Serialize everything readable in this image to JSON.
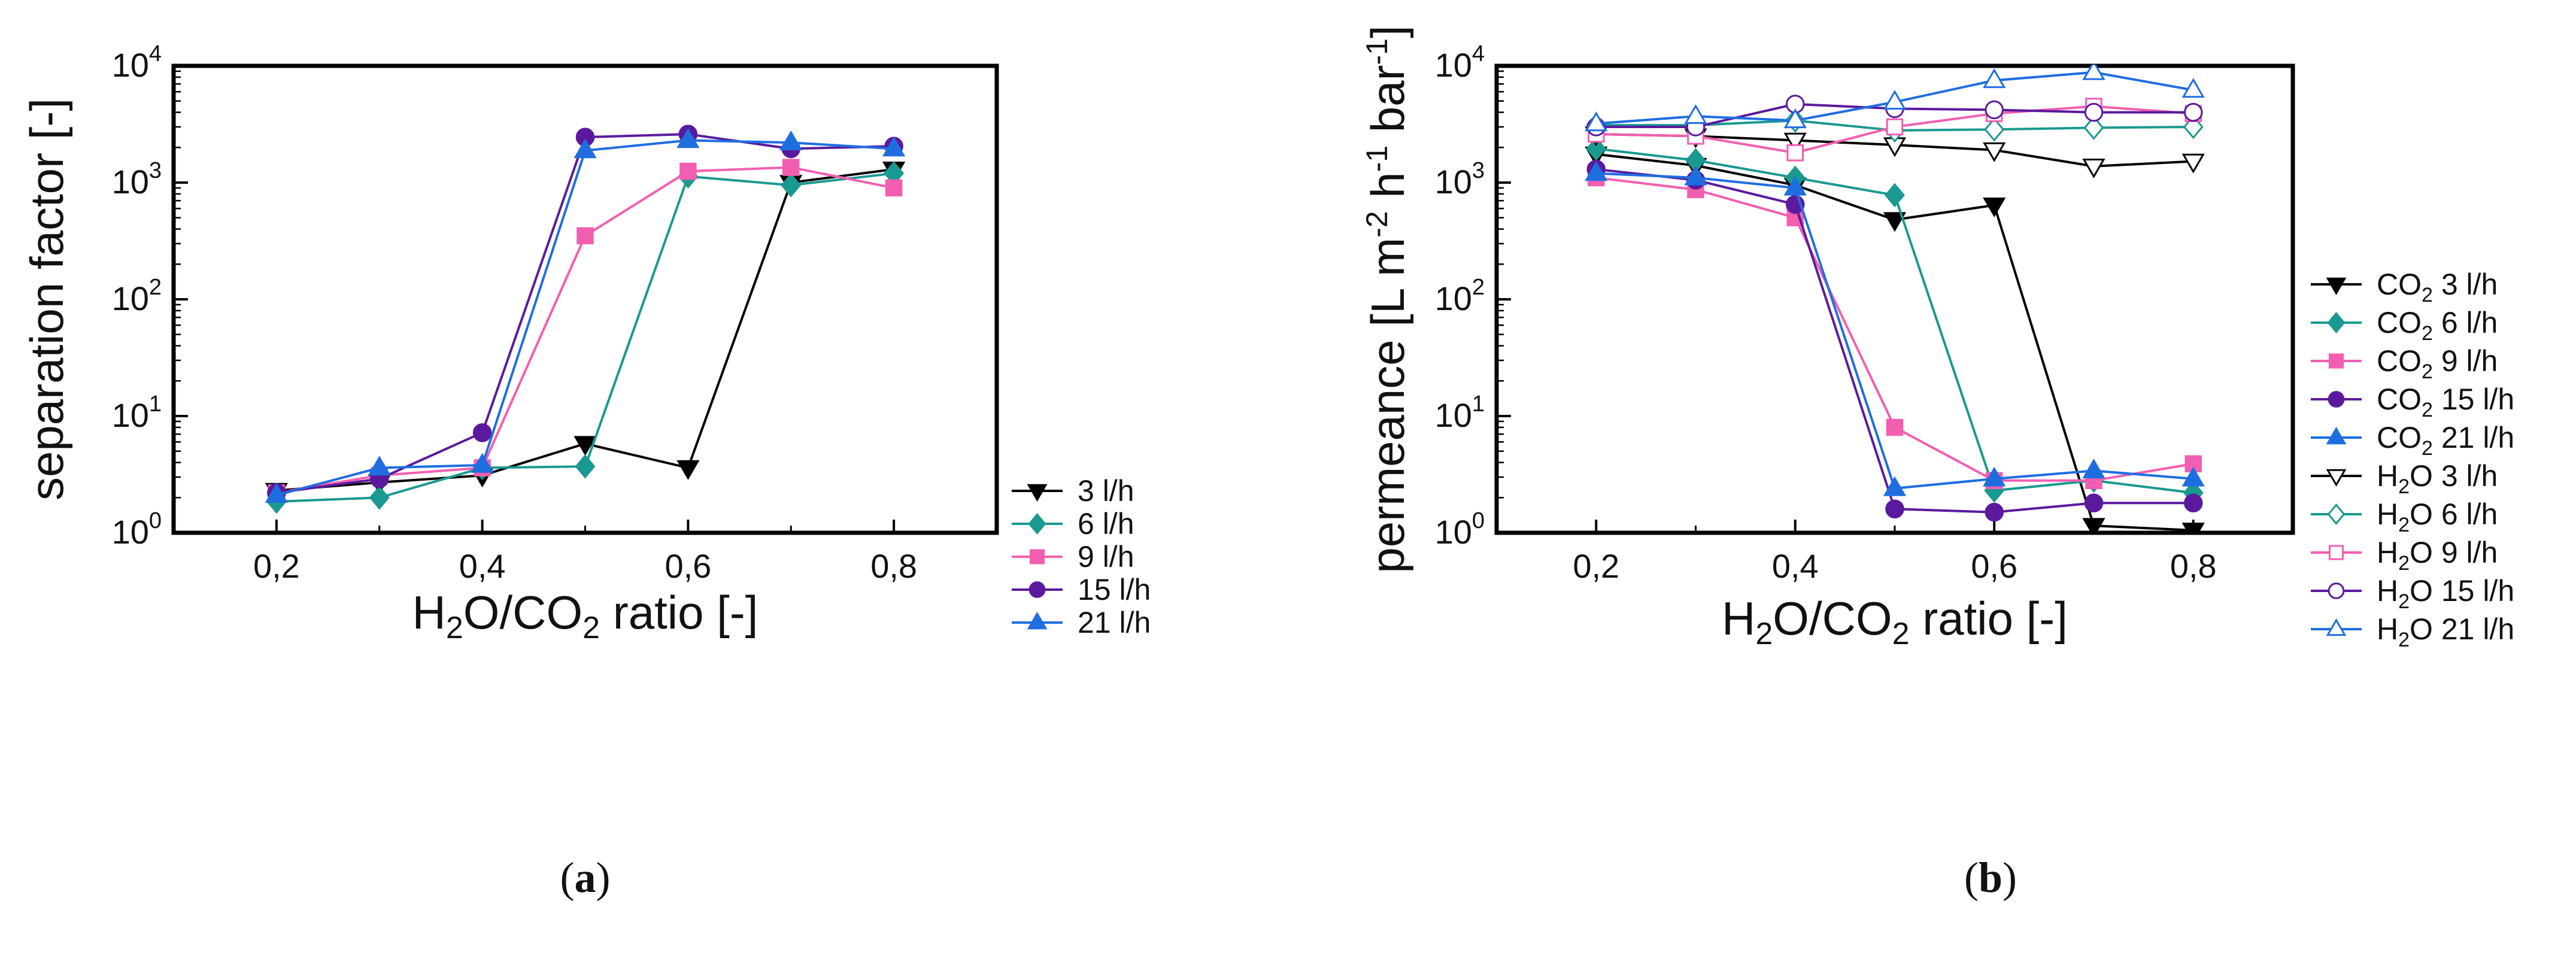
{
  "chart_data": [
    {
      "type": "line",
      "panel_label": "a",
      "title": "",
      "xlabel": "H2O/CO2 ratio [-]",
      "ylabel": "separation factor [-]",
      "yscale": "log",
      "xlim": [
        0.1,
        0.9
      ],
      "ylim": [
        1,
        10000
      ],
      "xticks": [
        "0,2",
        "0,4",
        "0,6",
        "0,8"
      ],
      "yticks": [
        "10",
        "10",
        "10",
        "10",
        "10"
      ],
      "ytick_exponents": [
        "0",
        "1",
        "2",
        "3",
        "4"
      ],
      "legend_position": "right",
      "x": [
        0.2,
        0.3,
        0.4,
        0.5,
        0.6,
        0.7,
        0.8
      ],
      "series": [
        {
          "name": "3 l/h",
          "color": "#000000",
          "marker": "triangle-down",
          "filled": true,
          "values": [
            2.3,
            2.7,
            3.1,
            5.8,
            3.6,
            1000,
            1300
          ]
        },
        {
          "name": "6 l/h",
          "color": "#1a9990",
          "marker": "diamond",
          "filled": true,
          "values": [
            1.85,
            2.0,
            3.6,
            3.7,
            1130,
            950,
            1200
          ]
        },
        {
          "name": "9 l/h",
          "color": "#f25fb0",
          "marker": "square",
          "filled": true,
          "values": [
            2.2,
            3.1,
            3.6,
            350,
            1250,
            1350,
            900
          ]
        },
        {
          "name": "15 l/h",
          "color": "#5b1a9e",
          "marker": "circle",
          "filled": true,
          "values": [
            2.2,
            2.9,
            7.2,
            2450,
            2600,
            1950,
            2050
          ]
        },
        {
          "name": "21 l/h",
          "color": "#1e6ee0",
          "marker": "triangle-up",
          "filled": true,
          "values": [
            2.1,
            3.6,
            3.8,
            1880,
            2300,
            2200,
            1950
          ]
        }
      ]
    },
    {
      "type": "line",
      "panel_label": "b",
      "title": "",
      "xlabel": "H2O/CO2 ratio [-]",
      "ylabel": "permeance [L m-2 h-1 bar-1]",
      "yscale": "log",
      "xlim": [
        0.1,
        0.9
      ],
      "ylim": [
        1,
        10000
      ],
      "xticks": [
        "0,2",
        "0,4",
        "0,6",
        "0,8"
      ],
      "yticks": [
        "10",
        "10",
        "10",
        "10",
        "10"
      ],
      "ytick_exponents": [
        "0",
        "1",
        "2",
        "3",
        "4"
      ],
      "legend_position": "right",
      "x": [
        0.2,
        0.3,
        0.4,
        0.5,
        0.6,
        0.7,
        0.8
      ],
      "series": [
        {
          "name": "CO2 3 l/h",
          "color": "#000000",
          "marker": "triangle-down",
          "filled": true,
          "values": [
            1750,
            1400,
            950,
            480,
            640,
            1.15,
            1.05
          ]
        },
        {
          "name": "CO2 6 l/h",
          "color": "#1a9990",
          "marker": "diamond",
          "filled": true,
          "values": [
            1950,
            1550,
            1100,
            780,
            2.3,
            2.8,
            2.2
          ]
        },
        {
          "name": "CO2 9 l/h",
          "color": "#f25fb0",
          "marker": "square",
          "filled": true,
          "values": [
            1100,
            870,
            500,
            8.0,
            2.8,
            2.8,
            3.9
          ]
        },
        {
          "name": "CO2 15 l/h",
          "color": "#5b1a9e",
          "marker": "circle",
          "filled": true,
          "values": [
            1300,
            1050,
            650,
            1.6,
            1.5,
            1.8,
            1.8
          ]
        },
        {
          "name": "CO2 21 l/h",
          "color": "#1e6ee0",
          "marker": "triangle-up",
          "filled": true,
          "values": [
            1200,
            1100,
            900,
            2.4,
            2.9,
            3.4,
            2.9
          ]
        },
        {
          "name": "H2O 3 l/h",
          "color": "#000000",
          "marker": "triangle-down",
          "filled": false,
          "values": [
            2600,
            2500,
            2300,
            2100,
            1900,
            1380,
            1520
          ]
        },
        {
          "name": "H2O 6 l/h",
          "color": "#1a9990",
          "marker": "diamond",
          "filled": false,
          "values": [
            3100,
            3100,
            3400,
            2800,
            2850,
            2950,
            3000
          ]
        },
        {
          "name": "H2O 9 l/h",
          "color": "#f25fb0",
          "marker": "square",
          "filled": false,
          "values": [
            2600,
            2500,
            1800,
            3000,
            3900,
            4500,
            3900
          ]
        },
        {
          "name": "H2O 15 l/h",
          "color": "#5b1a9e",
          "marker": "circle",
          "filled": false,
          "values": [
            3000,
            3000,
            4700,
            4300,
            4200,
            4000,
            4000
          ]
        },
        {
          "name": "H2O 21 l/h",
          "color": "#1e6ee0",
          "marker": "triangle-up",
          "filled": false,
          "values": [
            3200,
            3700,
            3400,
            4900,
            7500,
            8800,
            6200
          ]
        }
      ]
    }
  ]
}
